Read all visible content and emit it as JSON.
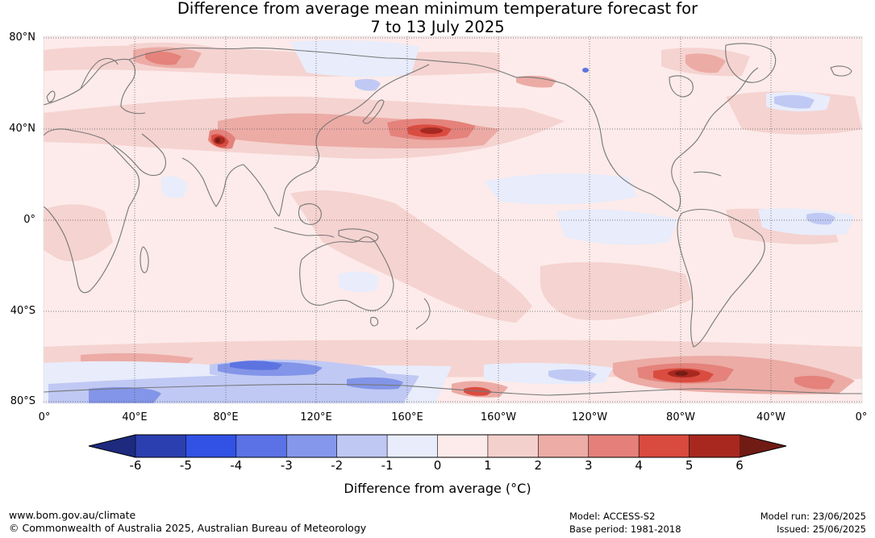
{
  "title": {
    "line1": "Difference from average mean minimum temperature forecast for",
    "line2": "7 to 13 July 2025"
  },
  "map": {
    "lat_labels": [
      "80°N",
      "40°N",
      "0°",
      "40°S",
      "80°S"
    ],
    "lon_labels": [
      "0°",
      "40°E",
      "80°E",
      "120°E",
      "160°E",
      "160°W",
      "120°W",
      "80°W",
      "40°W",
      "0°"
    ],
    "colors": {
      "neg6": "#1f2f8e",
      "neg5": "#2b44b8",
      "neg4": "#3352e0",
      "neg3": "#5d73e0",
      "neg2": "#8395e8",
      "neg1": "#c0c9f4",
      "zero_neg": "#eaeefc",
      "pos0": "#fcebea",
      "pos1": "#f5d3d0",
      "pos2": "#ecaba5",
      "pos3": "#e4827b",
      "pos4": "#da4c40",
      "pos5": "#a8281f",
      "pos6": "#751b14",
      "coast": "#777777"
    }
  },
  "colorbar": {
    "ticks": [
      "-6",
      "-5",
      "-4",
      "-3",
      "-2",
      "-1",
      "0",
      "1",
      "2",
      "3",
      "4",
      "5",
      "6"
    ],
    "colors": [
      "#2b3fb0",
      "#3152e4",
      "#5a72e6",
      "#8497ea",
      "#bfc8f3",
      "#e8ecfb",
      "#fcebea",
      "#f4d0cc",
      "#edaca6",
      "#e48079",
      "#d94a3f",
      "#a8281f"
    ],
    "low_extend_color": "#1d2a7e",
    "high_extend_color": "#711b15",
    "label": "Difference from average (°C)"
  },
  "footer": {
    "website": "www.bom.gov.au/climate",
    "copyright": "© Commonwealth of Australia 2025, Australian Bureau of Meteorology",
    "model": "Model: ACCESS-S2",
    "base_period": "Base period: 1981-2018",
    "model_run": "Model run: 23/06/2025",
    "issued": "Issued: 25/06/2025"
  }
}
